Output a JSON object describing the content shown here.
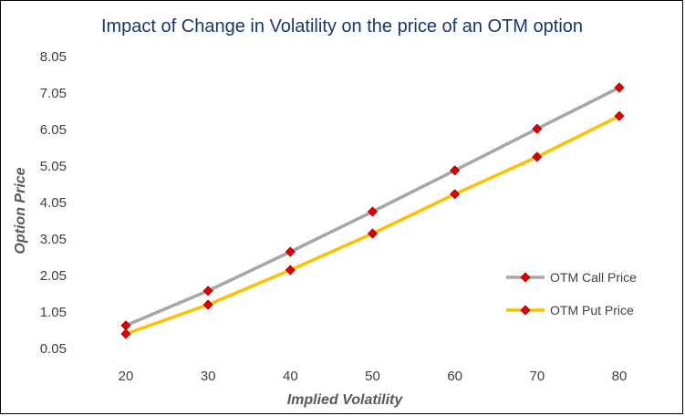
{
  "chart_data": {
    "type": "line",
    "title": "Impact of Change in Volatility on the price of an OTM option",
    "xlabel": "Implied Volatility",
    "ylabel": "Option Price",
    "x": [
      20,
      30,
      40,
      50,
      60,
      70,
      80
    ],
    "x_ticks": [
      "20",
      "30",
      "40",
      "50",
      "60",
      "70",
      "80"
    ],
    "y_ticks": [
      "0.05",
      "1.05",
      "2.05",
      "3.05",
      "4.05",
      "5.05",
      "6.05",
      "7.05",
      "8.05"
    ],
    "ylim": [
      0.05,
      8.05
    ],
    "grid": false,
    "legend": "right",
    "marker_color": "#e00000",
    "series": [
      {
        "name": "OTM Call Price",
        "color": "#a6a6a6",
        "values": [
          0.68,
          1.63,
          2.7,
          3.8,
          4.93,
          6.07,
          7.2
        ]
      },
      {
        "name": "OTM Put Price",
        "color": "#ffc000",
        "values": [
          0.45,
          1.25,
          2.2,
          3.2,
          4.28,
          5.3,
          6.42
        ]
      }
    ]
  }
}
